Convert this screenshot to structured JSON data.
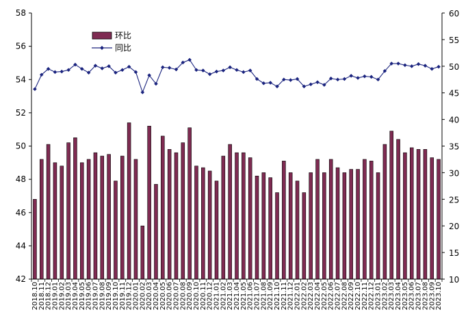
{
  "chart_data": {
    "type": "bar+line",
    "categories": [
      "2018.10",
      "2018.11",
      "2018.12",
      "2019.01",
      "2019.02",
      "2019.03",
      "2019.04",
      "2019.05",
      "2019.06",
      "2019.07",
      "2019.08",
      "2019.09",
      "2019.10",
      "2019.11",
      "2019.12",
      "2020.01",
      "2020.02",
      "2020.03",
      "2020.04",
      "2020.05",
      "2020.06",
      "2020.07",
      "2020.08",
      "2020.09",
      "2020.10",
      "2020.11",
      "2020.12",
      "2021.01",
      "2021.02",
      "2021.03",
      "2021.04",
      "2021.05",
      "2021.06",
      "2021.07",
      "2021.08",
      "2021.09",
      "2021.10",
      "2021.11",
      "2021.12",
      "2022.01",
      "2022.02",
      "2022.03",
      "2022.04",
      "2022.05",
      "2022.06",
      "2022.07",
      "2022.08",
      "2022.09",
      "2022.10",
      "2022.11",
      "2022.12",
      "2023.01",
      "2023.02",
      "2023.03",
      "2023.04",
      "2023.05",
      "2023.06",
      "2023.07",
      "2023.08",
      "2023.09",
      "2023.10"
    ],
    "series": [
      {
        "name": "环比",
        "axis": "left",
        "kind": "bar",
        "color": "#7f2b52",
        "values": [
          46.8,
          49.2,
          50.1,
          49.0,
          48.8,
          50.2,
          50.5,
          49.0,
          49.2,
          49.6,
          49.4,
          49.5,
          47.9,
          49.4,
          51.4,
          49.2,
          45.2,
          51.2,
          47.7,
          50.6,
          49.8,
          49.6,
          50.2,
          51.1,
          48.8,
          48.7,
          48.5,
          47.9,
          49.4,
          50.1,
          49.6,
          49.6,
          49.3,
          48.2,
          48.4,
          48.1,
          47.2,
          49.1,
          48.4,
          47.9,
          47.2,
          48.4,
          49.2,
          48.4,
          49.2,
          48.7,
          48.4,
          48.6,
          48.6,
          49.2,
          49.1,
          48.4,
          50.1,
          50.9,
          50.4,
          49.6,
          49.9,
          49.8,
          49.8,
          49.3,
          49.2
        ]
      },
      {
        "name": "同比",
        "axis": "right",
        "kind": "line",
        "color": "#1a237e",
        "values": [
          45.7,
          48.4,
          49.5,
          48.9,
          49.0,
          49.3,
          50.3,
          49.5,
          48.8,
          50.1,
          49.6,
          50.0,
          48.8,
          49.3,
          49.9,
          48.9,
          45.1,
          48.3,
          46.7,
          49.8,
          49.7,
          49.4,
          50.7,
          51.2,
          49.3,
          49.2,
          48.5,
          49.0,
          49.2,
          49.8,
          49.3,
          48.9,
          49.2,
          47.6,
          46.8,
          46.9,
          46.2,
          47.5,
          47.4,
          47.6,
          46.2,
          46.6,
          47.0,
          46.5,
          47.7,
          47.5,
          47.6,
          48.2,
          47.8,
          48.1,
          48.0,
          47.5,
          49.1,
          50.5,
          50.5,
          50.2,
          50.0,
          50.4,
          50.1,
          49.5,
          49.9
        ]
      }
    ],
    "y_left": {
      "min": 42,
      "max": 58,
      "ticks": [
        42,
        44,
        46,
        48,
        50,
        52,
        54,
        56,
        58
      ]
    },
    "y_right": {
      "min": 10,
      "max": 60,
      "ticks": [
        10,
        15,
        20,
        25,
        30,
        35,
        40,
        45,
        50,
        55,
        60
      ]
    },
    "legend_position": "top-left",
    "grid": false
  }
}
